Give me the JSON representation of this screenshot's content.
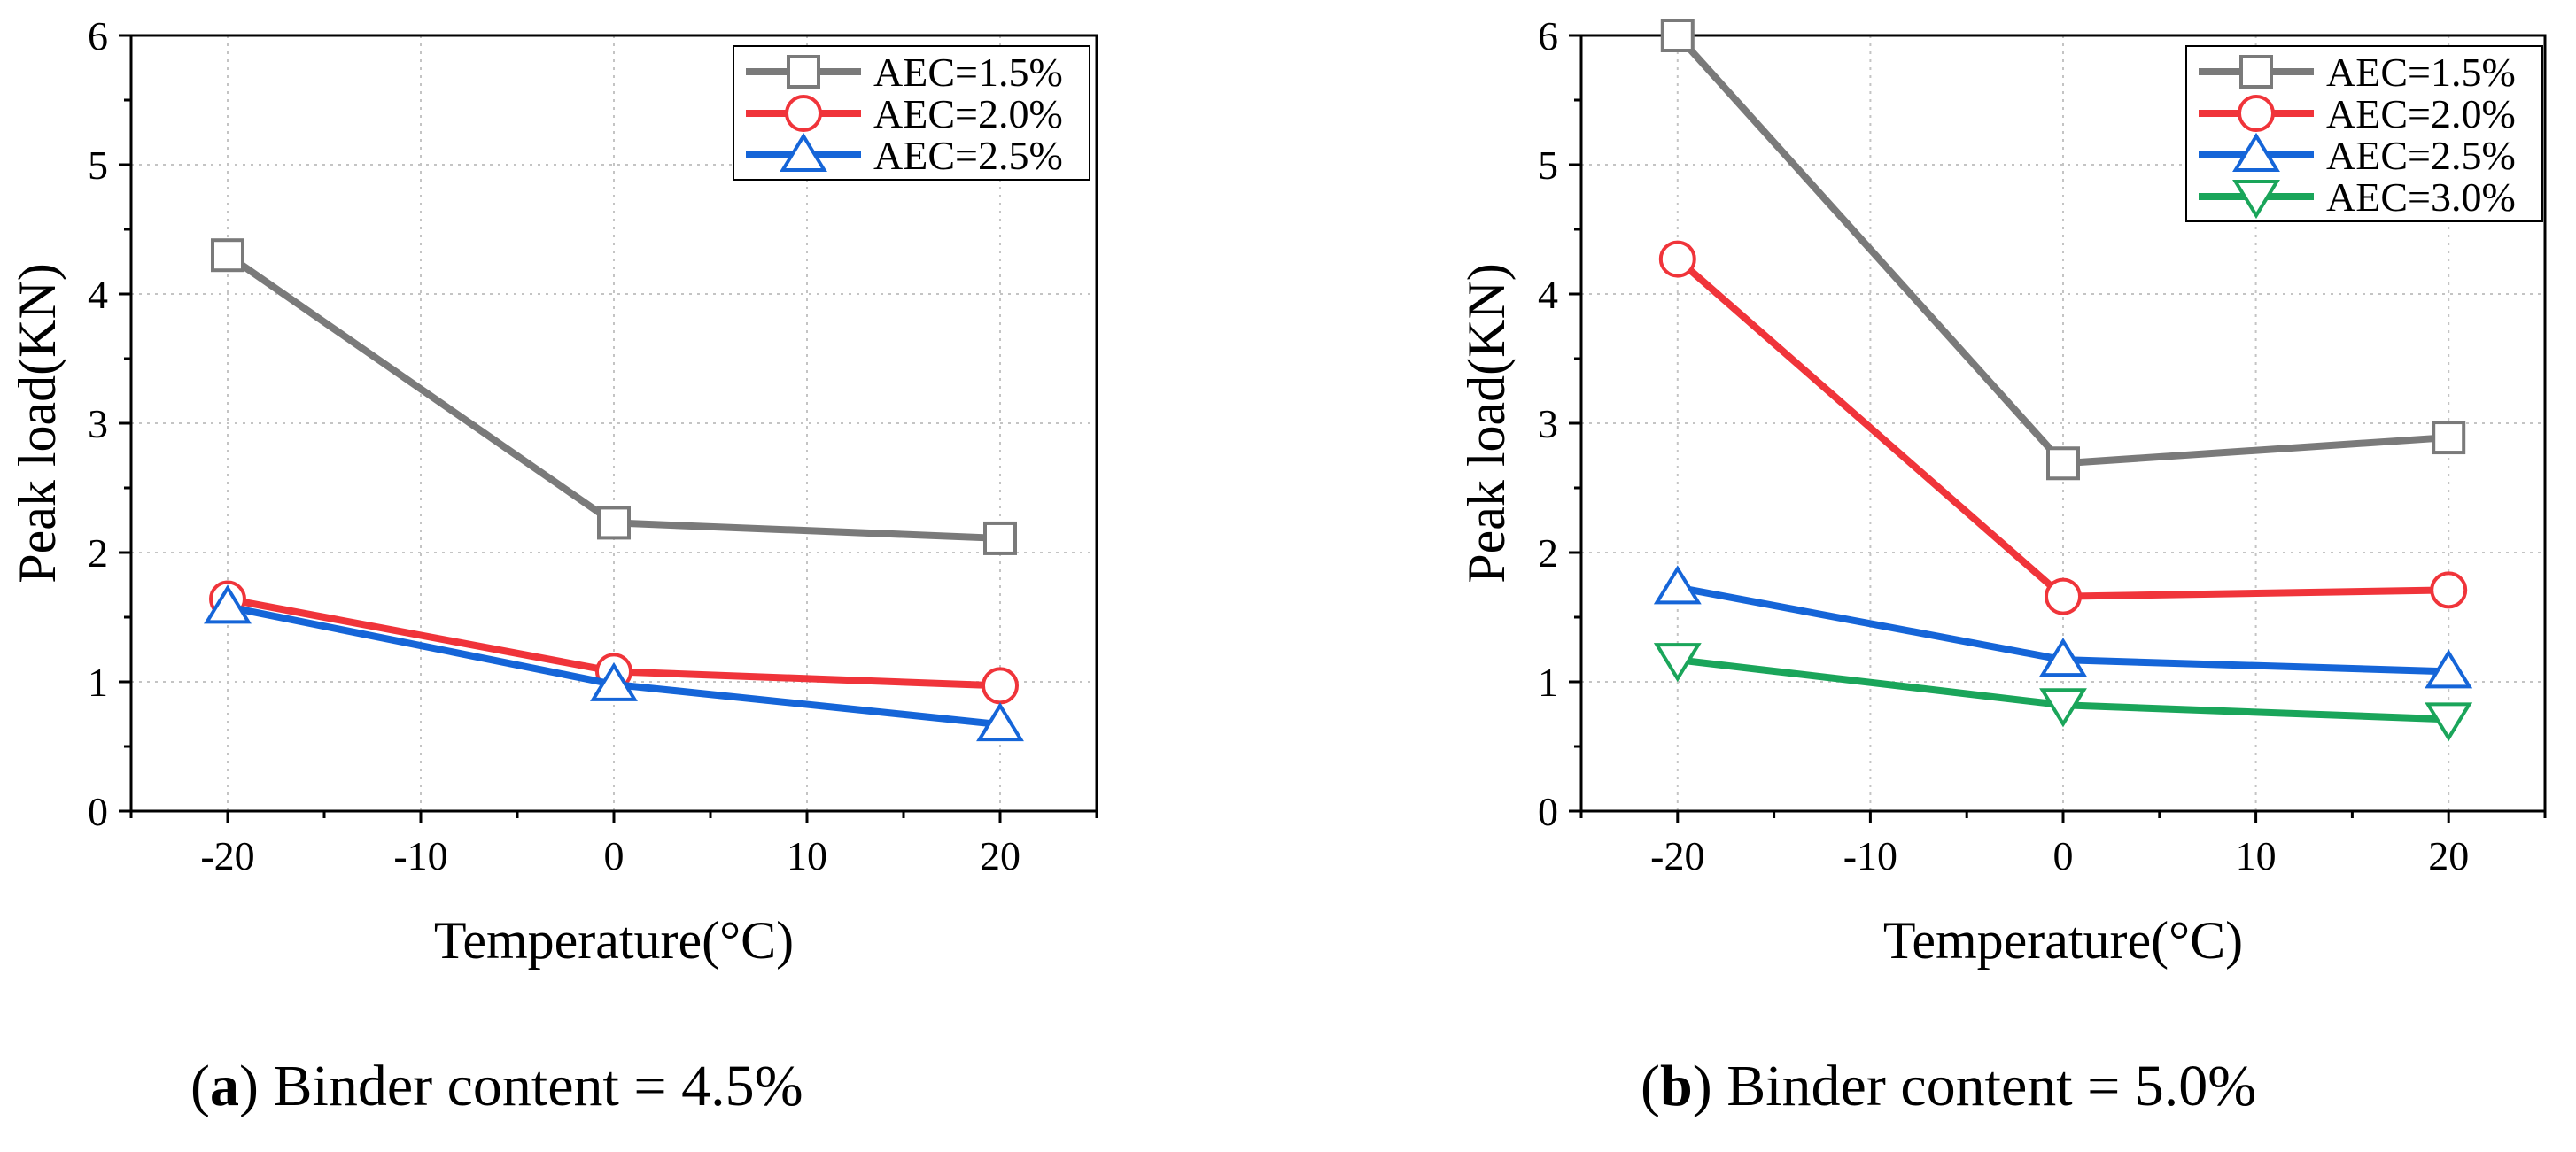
{
  "chart_data": [
    {
      "type": "line",
      "panel_label": "a",
      "caption": "Binder content = 4.5%",
      "xlabel": "Temperature(°C)",
      "ylabel": "Peak load(KN)",
      "xlim": [
        -25,
        25
      ],
      "ylim": [
        0,
        6
      ],
      "xticks": [
        -20,
        -10,
        0,
        10,
        20
      ],
      "yticks": [
        0,
        1,
        2,
        3,
        4,
        5,
        6
      ],
      "grid": true,
      "legend_position": "top-right",
      "x": [
        -20,
        0,
        20
      ],
      "series": [
        {
          "name": "AEC=1.5%",
          "marker": "square",
          "color": "#7a7a7a",
          "values": [
            4.3,
            2.23,
            2.11
          ]
        },
        {
          "name": "AEC=2.0%",
          "marker": "circle",
          "color": "#f0343a",
          "values": [
            1.64,
            1.08,
            0.97
          ]
        },
        {
          "name": "AEC=2.5%",
          "marker": "triangle-up",
          "color": "#1565d8",
          "values": [
            1.58,
            0.98,
            0.67
          ]
        }
      ]
    },
    {
      "type": "line",
      "panel_label": "b",
      "caption": "Binder content = 5.0%",
      "xlabel": "Temperature(°C)",
      "ylabel": "Peak load(KN)",
      "xlim": [
        -25,
        25
      ],
      "ylim": [
        0,
        6
      ],
      "xticks": [
        -20,
        -10,
        0,
        10,
        20
      ],
      "yticks": [
        0,
        1,
        2,
        3,
        4,
        5,
        6
      ],
      "grid": true,
      "legend_position": "top-right",
      "x": [
        -20,
        0,
        20
      ],
      "series": [
        {
          "name": "AEC=1.5%",
          "marker": "square",
          "color": "#7a7a7a",
          "values": [
            6.0,
            2.69,
            2.89
          ]
        },
        {
          "name": "AEC=2.0%",
          "marker": "circle",
          "color": "#f0343a",
          "values": [
            4.27,
            1.66,
            1.71
          ]
        },
        {
          "name": "AEC=2.5%",
          "marker": "triangle-up",
          "color": "#1565d8",
          "values": [
            1.73,
            1.17,
            1.08
          ]
        },
        {
          "name": "AEC=3.0%",
          "marker": "triangle-down",
          "color": "#1aa55a",
          "values": [
            1.17,
            0.82,
            0.71
          ]
        }
      ]
    }
  ]
}
